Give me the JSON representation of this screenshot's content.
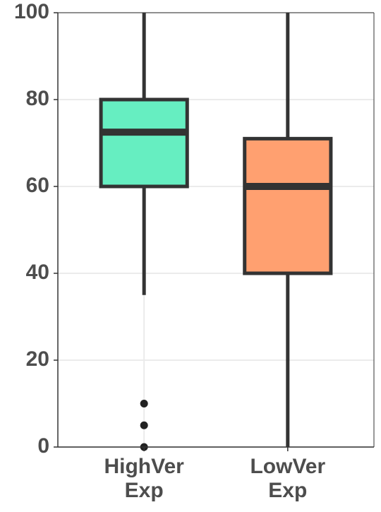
{
  "chart_data": {
    "type": "box",
    "categories": [
      "HighVer Exp",
      "LowVer Exp"
    ],
    "stats": [
      {
        "low": 35,
        "q1": 60,
        "median": 72.5,
        "q3": 80,
        "high": 100,
        "outliers": [
          10,
          5,
          0
        ],
        "color": "#66eec1"
      },
      {
        "low": 0,
        "q1": 40,
        "median": 60,
        "q3": 71,
        "high": 100,
        "outliers": [],
        "color": "#ffa070"
      }
    ],
    "ylim": [
      0,
      100
    ],
    "yticks": [
      0,
      20,
      40,
      60,
      80,
      100
    ],
    "grid": true
  }
}
